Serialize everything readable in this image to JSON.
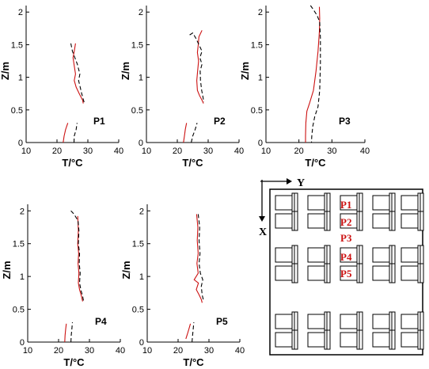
{
  "chart_data": [
    {
      "type": "line",
      "tag": "P1",
      "xlabel": "T/°C",
      "ylabel": "Z/m",
      "xlim": [
        10,
        40
      ],
      "ylim": [
        0,
        2.1
      ],
      "xticks": [
        10,
        20,
        30,
        40
      ],
      "yticks": [
        0,
        0.5,
        1,
        1.5,
        2
      ],
      "grid": false,
      "series": [
        {
          "color": "#cc1111",
          "dash": "solid",
          "segments": [
            [
              [
                22.0,
                0.0
              ],
              [
                22.3,
                0.1
              ],
              [
                22.8,
                0.2
              ],
              [
                23.5,
                0.3
              ]
            ],
            [
              [
                26.0,
                1.52
              ],
              [
                25.6,
                1.4
              ],
              [
                25.2,
                1.3
              ],
              [
                25.5,
                1.2
              ],
              [
                26.0,
                1.05
              ],
              [
                25.6,
                0.95
              ],
              [
                26.2,
                0.85
              ],
              [
                27.2,
                0.75
              ],
              [
                28.3,
                0.65
              ],
              [
                28.5,
                0.6
              ]
            ]
          ]
        },
        {
          "color": "#000000",
          "dash": "dashed",
          "segments": [
            [
              [
                25.5,
                0.0
              ],
              [
                25.6,
                0.1
              ],
              [
                26.2,
                0.2
              ],
              [
                26.5,
                0.3
              ]
            ],
            [
              [
                24.5,
                1.52
              ],
              [
                25.0,
                1.4
              ],
              [
                25.8,
                1.3
              ],
              [
                26.6,
                1.2
              ],
              [
                27.4,
                1.05
              ],
              [
                27.0,
                0.95
              ],
              [
                27.5,
                0.85
              ],
              [
                28.0,
                0.75
              ],
              [
                28.6,
                0.65
              ],
              [
                28.9,
                0.6
              ]
            ]
          ]
        }
      ]
    },
    {
      "type": "line",
      "tag": "P2",
      "xlabel": "T/°C",
      "ylabel": "Z/m",
      "xlim": [
        10,
        40
      ],
      "ylim": [
        0,
        2.1
      ],
      "xticks": [
        10,
        20,
        30,
        40
      ],
      "yticks": [
        0,
        0.5,
        1,
        1.5,
        2
      ],
      "grid": false,
      "series": [
        {
          "color": "#cc1111",
          "dash": "solid",
          "segments": [
            [
              [
                22.0,
                0.0
              ],
              [
                22.3,
                0.1
              ],
              [
                22.6,
                0.2
              ],
              [
                23.0,
                0.3
              ]
            ],
            [
              [
                28.0,
                1.72
              ],
              [
                27.0,
                1.62
              ],
              [
                26.8,
                1.5
              ],
              [
                26.5,
                1.38
              ],
              [
                26.9,
                1.25
              ],
              [
                26.6,
                1.1
              ],
              [
                26.3,
                0.95
              ],
              [
                26.5,
                0.8
              ],
              [
                27.2,
                0.72
              ],
              [
                28.0,
                0.65
              ],
              [
                28.5,
                0.6
              ]
            ]
          ]
        },
        {
          "color": "#000000",
          "dash": "dashed",
          "segments": [
            [
              [
                24.5,
                0.0
              ],
              [
                25.0,
                0.1
              ],
              [
                25.8,
                0.2
              ],
              [
                26.4,
                0.3
              ]
            ],
            [
              [
                24.0,
                1.65
              ],
              [
                25.0,
                1.68
              ],
              [
                26.0,
                1.6
              ],
              [
                27.0,
                1.5
              ],
              [
                28.0,
                1.4
              ],
              [
                27.3,
                1.3
              ],
              [
                28.0,
                1.2
              ],
              [
                27.4,
                1.1
              ],
              [
                27.5,
                0.95
              ],
              [
                27.9,
                0.8
              ],
              [
                28.3,
                0.7
              ],
              [
                28.6,
                0.62
              ]
            ]
          ]
        }
      ]
    },
    {
      "type": "line",
      "tag": "P3",
      "xlabel": "T/°C",
      "ylabel": "Z/m",
      "xlim": [
        10,
        40
      ],
      "ylim": [
        0,
        2.1
      ],
      "xticks": [
        10,
        20,
        30,
        40
      ],
      "yticks": [
        0,
        0.5,
        1,
        1.5,
        2
      ],
      "grid": false,
      "series": [
        {
          "color": "#cc1111",
          "dash": "solid",
          "segments": [
            [
              [
                26.2,
                2.08
              ],
              [
                26.3,
                1.9
              ],
              [
                26.2,
                1.7
              ],
              [
                25.8,
                1.4
              ],
              [
                25.2,
                1.1
              ],
              [
                24.4,
                0.8
              ],
              [
                23.2,
                0.6
              ],
              [
                22.4,
                0.48
              ],
              [
                22.1,
                0.3
              ],
              [
                22.0,
                0.1
              ],
              [
                22.0,
                0.0
              ]
            ]
          ]
        },
        {
          "color": "#000000",
          "dash": "dashed",
          "segments": [
            [
              [
                23.5,
                2.1
              ],
              [
                24.2,
                2.05
              ],
              [
                25.5,
                1.95
              ],
              [
                26.3,
                1.85
              ],
              [
                26.5,
                1.6
              ],
              [
                26.5,
                1.2
              ],
              [
                26.3,
                0.8
              ],
              [
                25.8,
                0.55
              ],
              [
                24.8,
                0.4
              ],
              [
                24.2,
                0.25
              ],
              [
                23.9,
                0.1
              ],
              [
                23.8,
                0.0
              ]
            ]
          ]
        }
      ]
    },
    {
      "type": "line",
      "tag": "P4",
      "xlabel": "T/°C",
      "ylabel": "Z/m",
      "xlim": [
        10,
        40
      ],
      "ylim": [
        0,
        2.1
      ],
      "xticks": [
        10,
        20,
        30,
        40
      ],
      "yticks": [
        0,
        0.5,
        1,
        1.5,
        2
      ],
      "grid": false,
      "series": [
        {
          "color": "#cc1111",
          "dash": "solid",
          "segments": [
            [
              [
                22.0,
                0.0
              ],
              [
                22.1,
                0.1
              ],
              [
                22.3,
                0.2
              ],
              [
                22.5,
                0.28
              ]
            ],
            [
              [
                26.2,
                1.92
              ],
              [
                26.4,
                1.7
              ],
              [
                26.2,
                1.5
              ],
              [
                26.5,
                1.35
              ],
              [
                26.3,
                1.2
              ],
              [
                26.6,
                1.05
              ],
              [
                26.4,
                0.9
              ],
              [
                26.8,
                0.8
              ],
              [
                27.4,
                0.7
              ],
              [
                27.8,
                0.62
              ]
            ]
          ]
        },
        {
          "color": "#000000",
          "dash": "dashed",
          "segments": [
            [
              [
                24.0,
                0.0
              ],
              [
                24.1,
                0.1
              ],
              [
                24.3,
                0.2
              ],
              [
                24.5,
                0.3
              ]
            ],
            [
              [
                24.0,
                2.0
              ],
              [
                25.0,
                1.95
              ],
              [
                26.3,
                1.85
              ],
              [
                26.6,
                1.7
              ],
              [
                26.4,
                1.5
              ],
              [
                26.8,
                1.35
              ],
              [
                26.7,
                1.2
              ],
              [
                27.0,
                1.05
              ],
              [
                26.8,
                0.9
              ],
              [
                27.3,
                0.78
              ],
              [
                27.8,
                0.7
              ],
              [
                28.1,
                0.62
              ]
            ]
          ]
        }
      ]
    },
    {
      "type": "line",
      "tag": "P5",
      "xlabel": "T/°C",
      "ylabel": "Z/m",
      "xlim": [
        10,
        40
      ],
      "ylim": [
        0,
        2.1
      ],
      "xticks": [
        10,
        20,
        30,
        40
      ],
      "yticks": [
        0,
        0.5,
        1,
        1.5,
        2
      ],
      "grid": false,
      "series": [
        {
          "color": "#cc1111",
          "dash": "solid",
          "segments": [
            [
              [
                22.5,
                0.05
              ],
              [
                23.0,
                0.12
              ],
              [
                23.5,
                0.2
              ],
              [
                24.0,
                0.28
              ]
            ],
            [
              [
                26.0,
                1.95
              ],
              [
                26.4,
                1.75
              ],
              [
                26.2,
                1.55
              ],
              [
                26.5,
                1.35
              ],
              [
                26.1,
                1.2
              ],
              [
                26.5,
                1.05
              ],
              [
                25.2,
                0.95
              ],
              [
                26.6,
                0.9
              ],
              [
                25.9,
                0.8
              ],
              [
                26.8,
                0.72
              ],
              [
                27.5,
                0.65
              ],
              [
                27.8,
                0.6
              ]
            ]
          ]
        },
        {
          "color": "#000000",
          "dash": "dashed",
          "segments": [
            [
              [
                24.5,
                0.0
              ],
              [
                24.7,
                0.1
              ],
              [
                24.9,
                0.2
              ],
              [
                25.1,
                0.3
              ]
            ],
            [
              [
                26.5,
                1.95
              ],
              [
                27.0,
                1.75
              ],
              [
                26.8,
                1.55
              ],
              [
                27.1,
                1.35
              ],
              [
                26.8,
                1.2
              ],
              [
                27.2,
                1.05
              ],
              [
                28.0,
                0.95
              ],
              [
                27.5,
                0.85
              ],
              [
                27.8,
                0.72
              ],
              [
                28.3,
                0.62
              ]
            ]
          ]
        }
      ]
    }
  ],
  "layout_diagram": {
    "x_axis_label": "X",
    "y_axis_label": "Y",
    "points": [
      "P1",
      "P2",
      "P3",
      "P4",
      "P5"
    ],
    "point_color": "#cc1111"
  }
}
